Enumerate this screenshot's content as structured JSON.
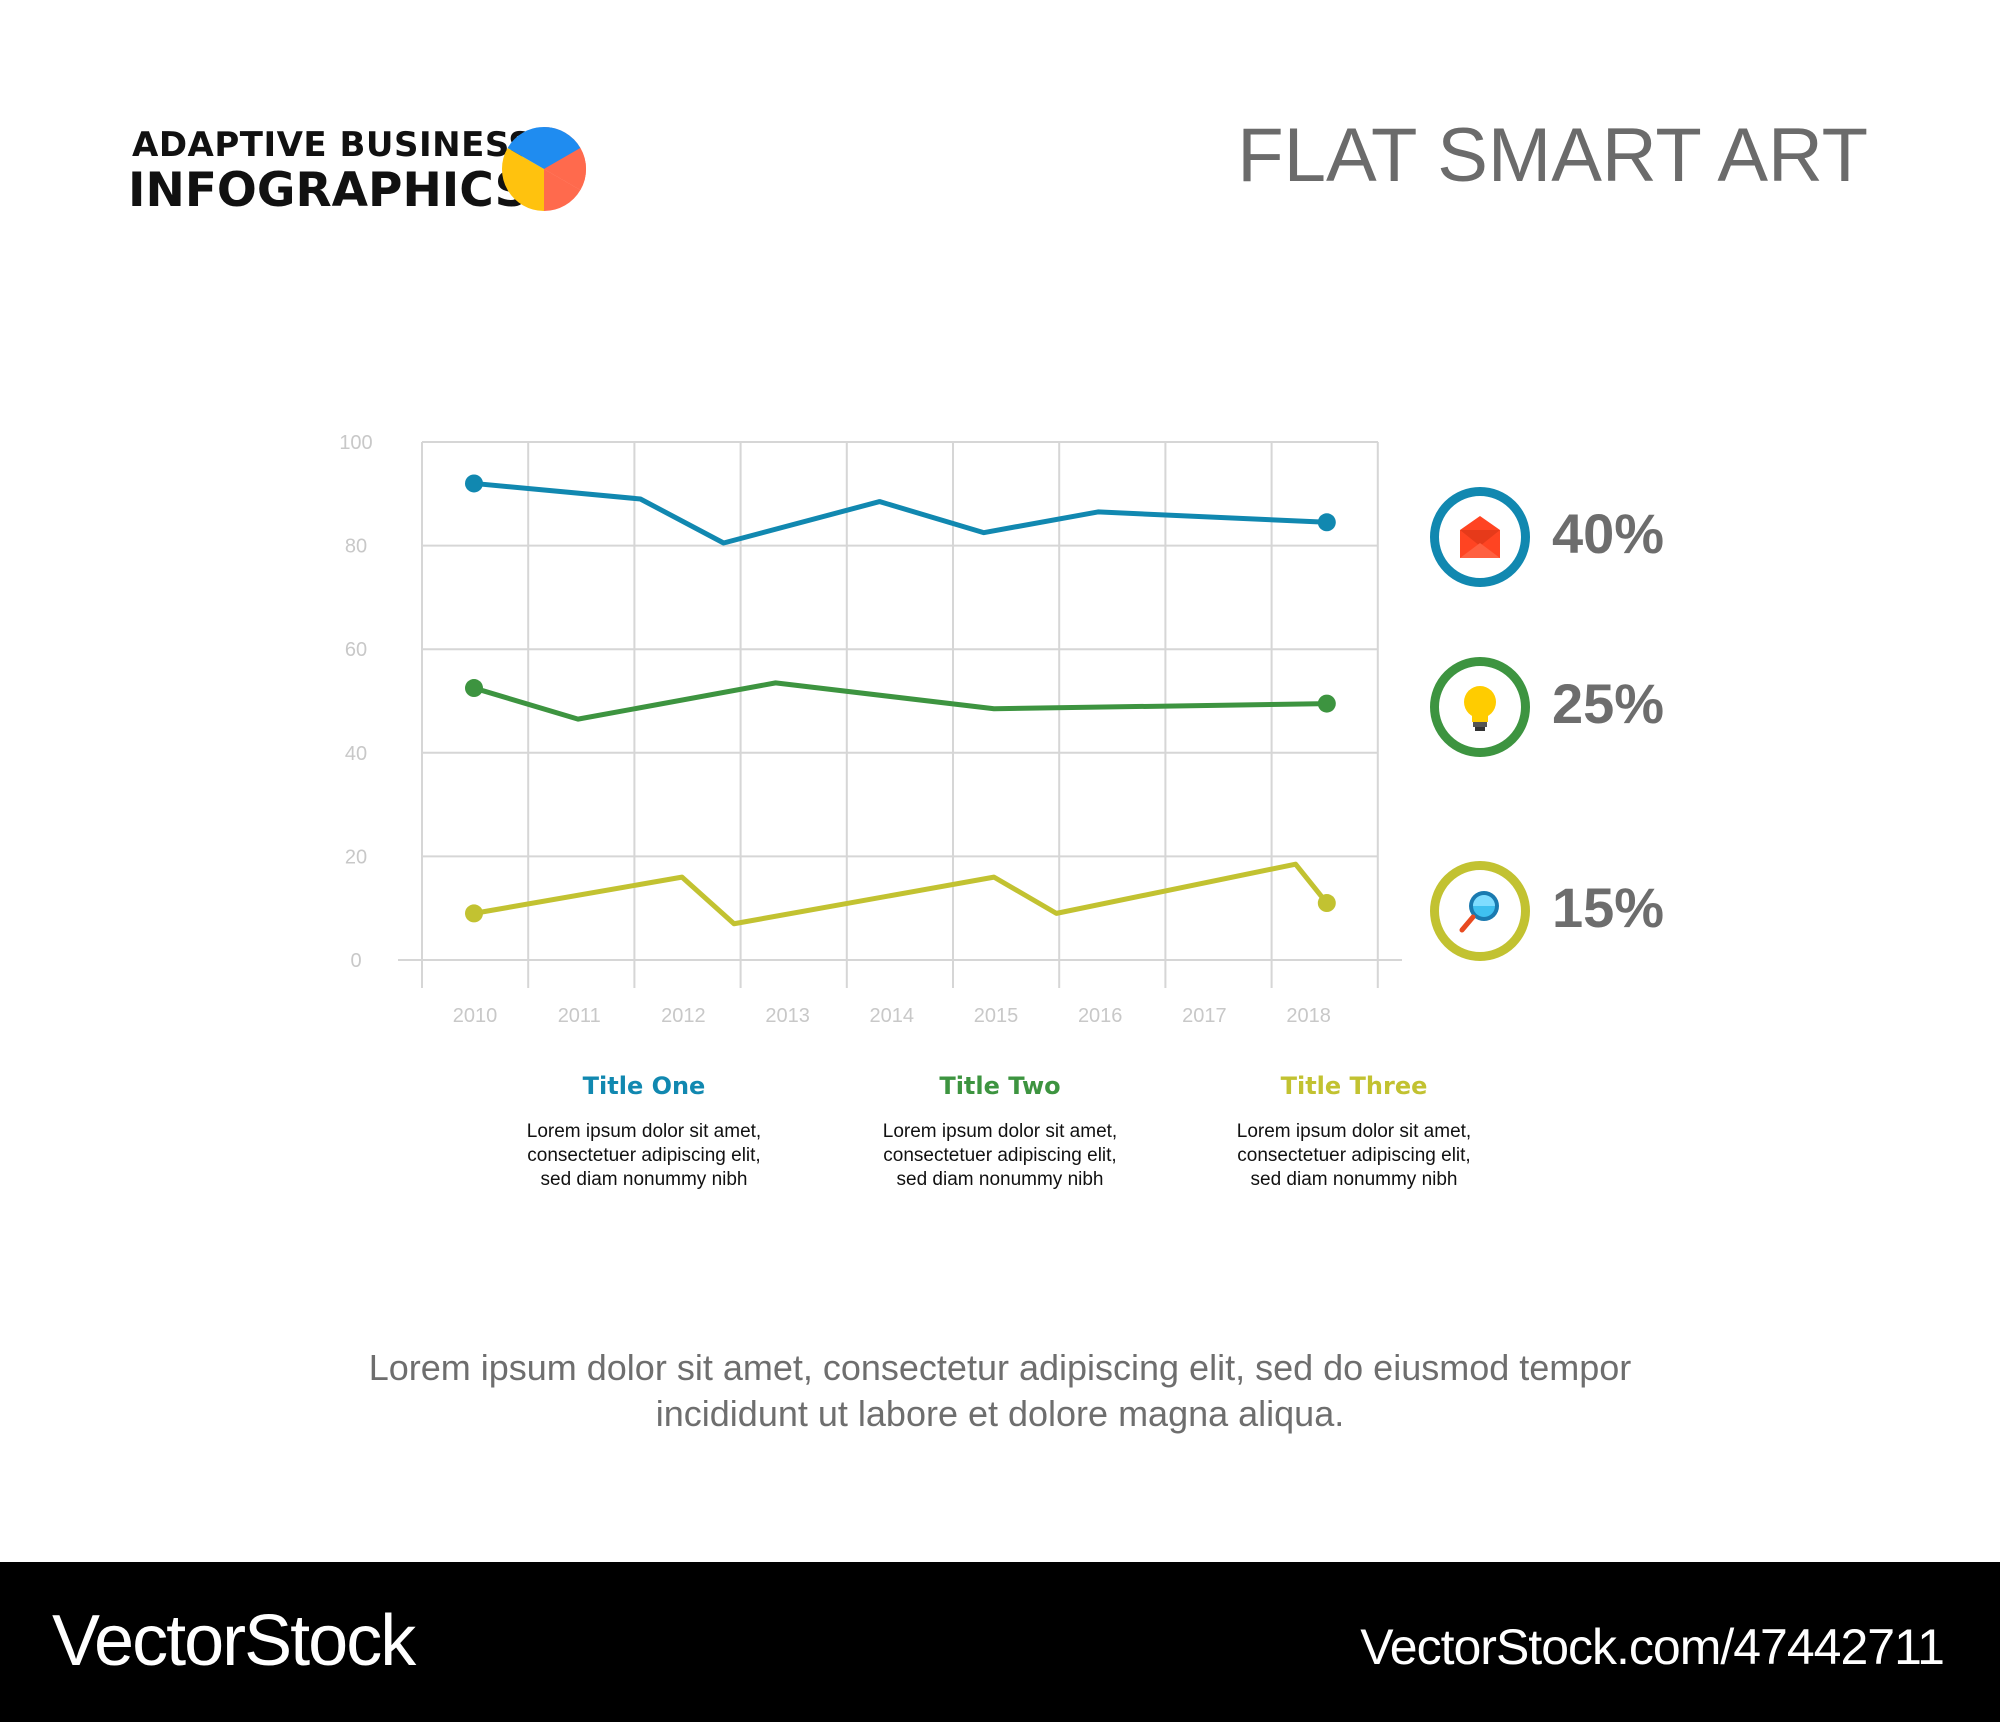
{
  "brand": {
    "line1": "ADAPTIVE BUSINESS",
    "line2": "INFOGRAPHICS"
  },
  "page_title": "FLAT SMART ART",
  "colors": {
    "series1": "#1188b0",
    "series2": "#3d9440",
    "series3": "#c2c231",
    "grid": "#d6d6d6",
    "tick": "#c8c8c8"
  },
  "chart_data": {
    "type": "line",
    "x_ticks": [
      "2010",
      "2011",
      "2012",
      "2013",
      "2014",
      "2015",
      "2016",
      "2017",
      "2018"
    ],
    "y_ticks": [
      "0",
      "20",
      "40",
      "60",
      "80",
      "100"
    ],
    "ylim": [
      0,
      100
    ],
    "grid": true,
    "series": [
      {
        "color": "#1188b0",
        "points": [
          [
            2010,
            92
          ],
          [
            2011.6,
            89
          ],
          [
            2012.4,
            80.5
          ],
          [
            2013.9,
            88.5
          ],
          [
            2014.9,
            82.5
          ],
          [
            2016,
            86.5
          ],
          [
            2018.2,
            84.5
          ]
        ]
      },
      {
        "color": "#3d9440",
        "points": [
          [
            2010,
            52.5
          ],
          [
            2011,
            46.5
          ],
          [
            2012.9,
            53.5
          ],
          [
            2015,
            48.5
          ],
          [
            2018.2,
            49.5
          ]
        ]
      },
      {
        "color": "#c2c231",
        "points": [
          [
            2010,
            9
          ],
          [
            2012,
            16
          ],
          [
            2012.5,
            7
          ],
          [
            2015,
            16
          ],
          [
            2015.6,
            9
          ],
          [
            2017.9,
            18.5
          ],
          [
            2018.2,
            11
          ]
        ]
      }
    ]
  },
  "legend": [
    {
      "percent": "40%",
      "color": "#1188b0",
      "icon": "envelope-icon"
    },
    {
      "percent": "25%",
      "color": "#3d9440",
      "icon": "lightbulb-icon"
    },
    {
      "percent": "15%",
      "color": "#c2c231",
      "icon": "magnifier-icon"
    }
  ],
  "columns": [
    {
      "title": "Title One",
      "color": "#1188b0",
      "lines": [
        "Lorem ipsum dolor sit amet,",
        "consectetuer adipiscing elit,",
        "sed diam nonummy nibh"
      ]
    },
    {
      "title": "Title Two",
      "color": "#3d9440",
      "lines": [
        "Lorem ipsum dolor sit amet,",
        "consectetuer adipiscing elit,",
        "sed diam nonummy nibh"
      ]
    },
    {
      "title": "Title Three",
      "color": "#c2c231",
      "lines": [
        "Lorem ipsum dolor sit amet,",
        "consectetuer adipiscing elit,",
        "sed diam nonummy nibh"
      ]
    }
  ],
  "footer": {
    "line1": "Lorem ipsum dolor sit amet, consectetur adipiscing elit, sed do eiusmod tempor",
    "line2": "incididunt ut labore et dolore magna aliqua."
  },
  "watermark": {
    "left": "VectorStock",
    "right": "VectorStock.com/47442711"
  }
}
